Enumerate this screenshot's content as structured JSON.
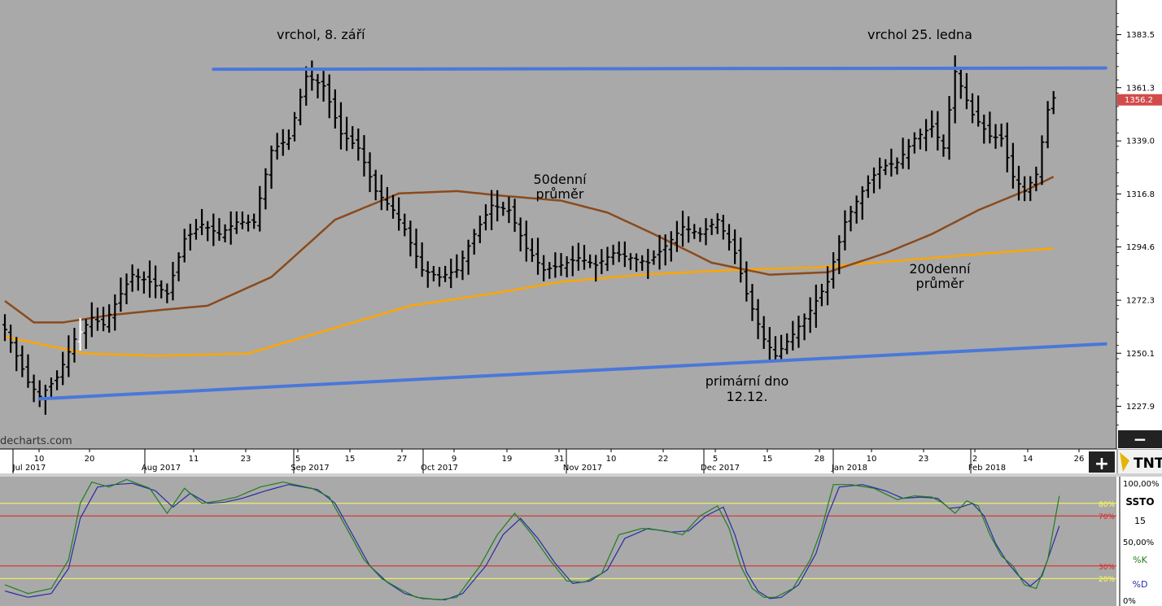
{
  "colors": {
    "background": "#a9a9a9",
    "candle": "#000000",
    "ma50": "#8b4a1c",
    "ma200": "#ffa500",
    "trendline": "#4a78d8",
    "last_price_bg": "#d24b4b",
    "stoch_k": "#1d7f1d",
    "stoch_d": "#2a2aa8",
    "level_yellow": "#ffff55",
    "level_red": "#e02020"
  },
  "watermark": "decharts.com",
  "logo": "TNT",
  "controls": {
    "minus": "−",
    "plus": "+"
  },
  "price_axis": {
    "ticks": [
      "1383.5",
      "1361.3",
      "1339.0",
      "1316.8",
      "1294.6",
      "1272.3",
      "1250.1",
      "1227.9"
    ],
    "last_price": "1356.2"
  },
  "time_axis": [
    {
      "label": "10",
      "kind": "day"
    },
    {
      "label": "Jul 2017",
      "kind": "month"
    },
    {
      "label": "20",
      "kind": "day"
    },
    {
      "label": "Aug 2017",
      "kind": "month"
    },
    {
      "label": "11",
      "kind": "day"
    },
    {
      "label": "23",
      "kind": "day"
    },
    {
      "label": "5",
      "kind": "day"
    },
    {
      "label": "Sep 2017",
      "kind": "month"
    },
    {
      "label": "15",
      "kind": "day"
    },
    {
      "label": "27",
      "kind": "day"
    },
    {
      "label": "9",
      "kind": "day"
    },
    {
      "label": "Oct 2017",
      "kind": "month"
    },
    {
      "label": "19",
      "kind": "day"
    },
    {
      "label": "31",
      "kind": "day"
    },
    {
      "label": "Nov 2017",
      "kind": "month"
    },
    {
      "label": "10",
      "kind": "day"
    },
    {
      "label": "22",
      "kind": "day"
    },
    {
      "label": "5",
      "kind": "day"
    },
    {
      "label": "Dec 2017",
      "kind": "month"
    },
    {
      "label": "15",
      "kind": "day"
    },
    {
      "label": "28",
      "kind": "day"
    },
    {
      "label": "Jan 2018",
      "kind": "month"
    },
    {
      "label": "10",
      "kind": "day"
    },
    {
      "label": "23",
      "kind": "day"
    },
    {
      "label": "2",
      "kind": "day"
    },
    {
      "label": "Feb 2018",
      "kind": "month"
    },
    {
      "label": "14",
      "kind": "day"
    },
    {
      "label": "26",
      "kind": "day"
    }
  ],
  "annotations": {
    "peak_sep": "vrchol, 8. září",
    "peak_jan": "vrchol 25. ledna",
    "ma50_line1": "50denní",
    "ma50_line2": "průměr",
    "ma200_line1": "200denní",
    "ma200_line2": "průměr",
    "bottom_line1": "primární dno",
    "bottom_line2": "12.12."
  },
  "stochastic": {
    "name": "SSTO",
    "period": "15",
    "k_label": "%K",
    "d_label": "%D",
    "axis_ticks": [
      "100,00%",
      "50,00%",
      "0%"
    ],
    "level_labels": [
      "80%",
      "70%",
      "30%",
      "20%"
    ],
    "levels": [
      80,
      70,
      30,
      20
    ]
  },
  "chart_data": {
    "type": "ohlc",
    "y_range": [
      1210,
      1398
    ],
    "trendlines": [
      {
        "name": "resistance",
        "from": [
          36,
          1369
        ],
        "to": [
          190,
          1369.5
        ]
      },
      {
        "name": "support",
        "from": [
          6,
          1231
        ],
        "to": [
          190,
          1254
        ]
      }
    ],
    "close_anchors": [
      [
        0,
        1260
      ],
      [
        4,
        1238
      ],
      [
        6,
        1232
      ],
      [
        9,
        1240
      ],
      [
        12,
        1256
      ],
      [
        15,
        1265
      ],
      [
        17,
        1262
      ],
      [
        20,
        1275
      ],
      [
        22,
        1283
      ],
      [
        25,
        1280
      ],
      [
        28,
        1275
      ],
      [
        31,
        1298
      ],
      [
        34,
        1304
      ],
      [
        37,
        1300
      ],
      [
        40,
        1305
      ],
      [
        43,
        1305
      ],
      [
        46,
        1335
      ],
      [
        49,
        1340
      ],
      [
        52,
        1366
      ],
      [
        55,
        1362
      ],
      [
        58,
        1342
      ],
      [
        61,
        1336
      ],
      [
        64,
        1318
      ],
      [
        67,
        1310
      ],
      [
        69,
        1302
      ],
      [
        72,
        1285
      ],
      [
        75,
        1282
      ],
      [
        78,
        1285
      ],
      [
        81,
        1300
      ],
      [
        84,
        1312
      ],
      [
        87,
        1310
      ],
      [
        90,
        1294
      ],
      [
        93,
        1285
      ],
      [
        96,
        1287
      ],
      [
        99,
        1290
      ],
      [
        102,
        1287
      ],
      [
        105,
        1292
      ],
      [
        108,
        1290
      ],
      [
        111,
        1288
      ],
      [
        114,
        1295
      ],
      [
        117,
        1303
      ],
      [
        120,
        1300
      ],
      [
        123,
        1306
      ],
      [
        126,
        1292
      ],
      [
        128,
        1275
      ],
      [
        131,
        1256
      ],
      [
        133,
        1249
      ],
      [
        136,
        1258
      ],
      [
        139,
        1268
      ],
      [
        142,
        1280
      ],
      [
        145,
        1305
      ],
      [
        148,
        1318
      ],
      [
        151,
        1328
      ],
      [
        154,
        1330
      ],
      [
        157,
        1340
      ],
      [
        160,
        1345
      ],
      [
        162,
        1336
      ],
      [
        164,
        1368
      ],
      [
        167,
        1350
      ],
      [
        170,
        1341
      ],
      [
        172,
        1340
      ],
      [
        174,
        1324
      ],
      [
        176,
        1318
      ],
      [
        178,
        1325
      ],
      [
        180,
        1352
      ],
      [
        181,
        1357
      ]
    ],
    "ma50_anchors": [
      [
        0,
        1272
      ],
      [
        5,
        1263
      ],
      [
        10,
        1263
      ],
      [
        18,
        1266
      ],
      [
        26,
        1268
      ],
      [
        35,
        1270
      ],
      [
        46,
        1282
      ],
      [
        57,
        1306
      ],
      [
        68,
        1317
      ],
      [
        78,
        1318
      ],
      [
        86,
        1316
      ],
      [
        96,
        1314
      ],
      [
        104,
        1309
      ],
      [
        112,
        1300
      ],
      [
        122,
        1288
      ],
      [
        132,
        1283
      ],
      [
        142,
        1284
      ],
      [
        152,
        1292
      ],
      [
        160,
        1300
      ],
      [
        168,
        1310
      ],
      [
        176,
        1318
      ],
      [
        181,
        1324
      ]
    ],
    "ma200_anchors": [
      [
        0,
        1257
      ],
      [
        8,
        1253
      ],
      [
        14,
        1250
      ],
      [
        26,
        1249
      ],
      [
        42,
        1250
      ],
      [
        56,
        1260
      ],
      [
        70,
        1270
      ],
      [
        84,
        1275
      ],
      [
        96,
        1280
      ],
      [
        110,
        1283
      ],
      [
        126,
        1285
      ],
      [
        140,
        1286
      ],
      [
        150,
        1288
      ],
      [
        160,
        1290
      ],
      [
        170,
        1292
      ],
      [
        181,
        1294
      ]
    ],
    "stoch_k_anchors": [
      [
        0,
        15
      ],
      [
        4,
        8
      ],
      [
        8,
        12
      ],
      [
        11,
        35
      ],
      [
        13,
        80
      ],
      [
        15,
        97
      ],
      [
        18,
        93
      ],
      [
        21,
        99
      ],
      [
        25,
        92
      ],
      [
        28,
        72
      ],
      [
        31,
        92
      ],
      [
        34,
        80
      ],
      [
        37,
        82
      ],
      [
        40,
        85
      ],
      [
        44,
        93
      ],
      [
        48,
        97
      ],
      [
        53,
        92
      ],
      [
        56,
        85
      ],
      [
        59,
        60
      ],
      [
        62,
        35
      ],
      [
        65,
        20
      ],
      [
        68,
        12
      ],
      [
        71,
        5
      ],
      [
        75,
        3
      ],
      [
        78,
        5
      ],
      [
        82,
        30
      ],
      [
        85,
        55
      ],
      [
        88,
        72
      ],
      [
        91,
        55
      ],
      [
        94,
        35
      ],
      [
        97,
        18
      ],
      [
        100,
        17
      ],
      [
        103,
        24
      ],
      [
        106,
        55
      ],
      [
        110,
        60
      ],
      [
        114,
        58
      ],
      [
        117,
        55
      ],
      [
        120,
        70
      ],
      [
        123,
        78
      ],
      [
        125,
        60
      ],
      [
        127,
        30
      ],
      [
        129,
        12
      ],
      [
        131,
        5
      ],
      [
        133,
        5
      ],
      [
        136,
        12
      ],
      [
        139,
        35
      ],
      [
        141,
        60
      ],
      [
        143,
        95
      ],
      [
        146,
        95
      ],
      [
        150,
        92
      ],
      [
        154,
        83
      ],
      [
        157,
        86
      ],
      [
        160,
        85
      ],
      [
        162,
        80
      ],
      [
        164,
        72
      ],
      [
        166,
        82
      ],
      [
        168,
        78
      ],
      [
        170,
        55
      ],
      [
        172,
        38
      ],
      [
        174,
        30
      ],
      [
        176,
        15
      ],
      [
        178,
        12
      ],
      [
        180,
        35
      ],
      [
        182,
        86
      ]
    ],
    "stoch_d_anchors": [
      [
        0,
        10
      ],
      [
        4,
        5
      ],
      [
        8,
        8
      ],
      [
        11,
        28
      ],
      [
        13,
        68
      ],
      [
        16,
        93
      ],
      [
        19,
        95
      ],
      [
        22,
        96
      ],
      [
        26,
        90
      ],
      [
        29,
        77
      ],
      [
        32,
        88
      ],
      [
        35,
        80
      ],
      [
        38,
        81
      ],
      [
        41,
        84
      ],
      [
        45,
        90
      ],
      [
        49,
        95
      ],
      [
        54,
        91
      ],
      [
        57,
        80
      ],
      [
        60,
        55
      ],
      [
        63,
        30
      ],
      [
        66,
        17
      ],
      [
        69,
        8
      ],
      [
        72,
        4
      ],
      [
        76,
        3
      ],
      [
        79,
        8
      ],
      [
        83,
        30
      ],
      [
        86,
        55
      ],
      [
        89,
        68
      ],
      [
        92,
        52
      ],
      [
        95,
        32
      ],
      [
        98,
        16
      ],
      [
        101,
        18
      ],
      [
        104,
        27
      ],
      [
        107,
        52
      ],
      [
        111,
        60
      ],
      [
        115,
        57
      ],
      [
        118,
        58
      ],
      [
        121,
        70
      ],
      [
        124,
        77
      ],
      [
        126,
        55
      ],
      [
        128,
        25
      ],
      [
        130,
        10
      ],
      [
        132,
        4
      ],
      [
        134,
        5
      ],
      [
        137,
        15
      ],
      [
        140,
        40
      ],
      [
        142,
        70
      ],
      [
        144,
        93
      ],
      [
        148,
        95
      ],
      [
        152,
        90
      ],
      [
        155,
        84
      ],
      [
        158,
        85
      ],
      [
        161,
        84
      ],
      [
        163,
        76
      ],
      [
        165,
        77
      ],
      [
        167,
        80
      ],
      [
        169,
        70
      ],
      [
        171,
        48
      ],
      [
        173,
        33
      ],
      [
        175,
        22
      ],
      [
        177,
        14
      ],
      [
        179,
        22
      ],
      [
        182,
        62
      ]
    ]
  }
}
